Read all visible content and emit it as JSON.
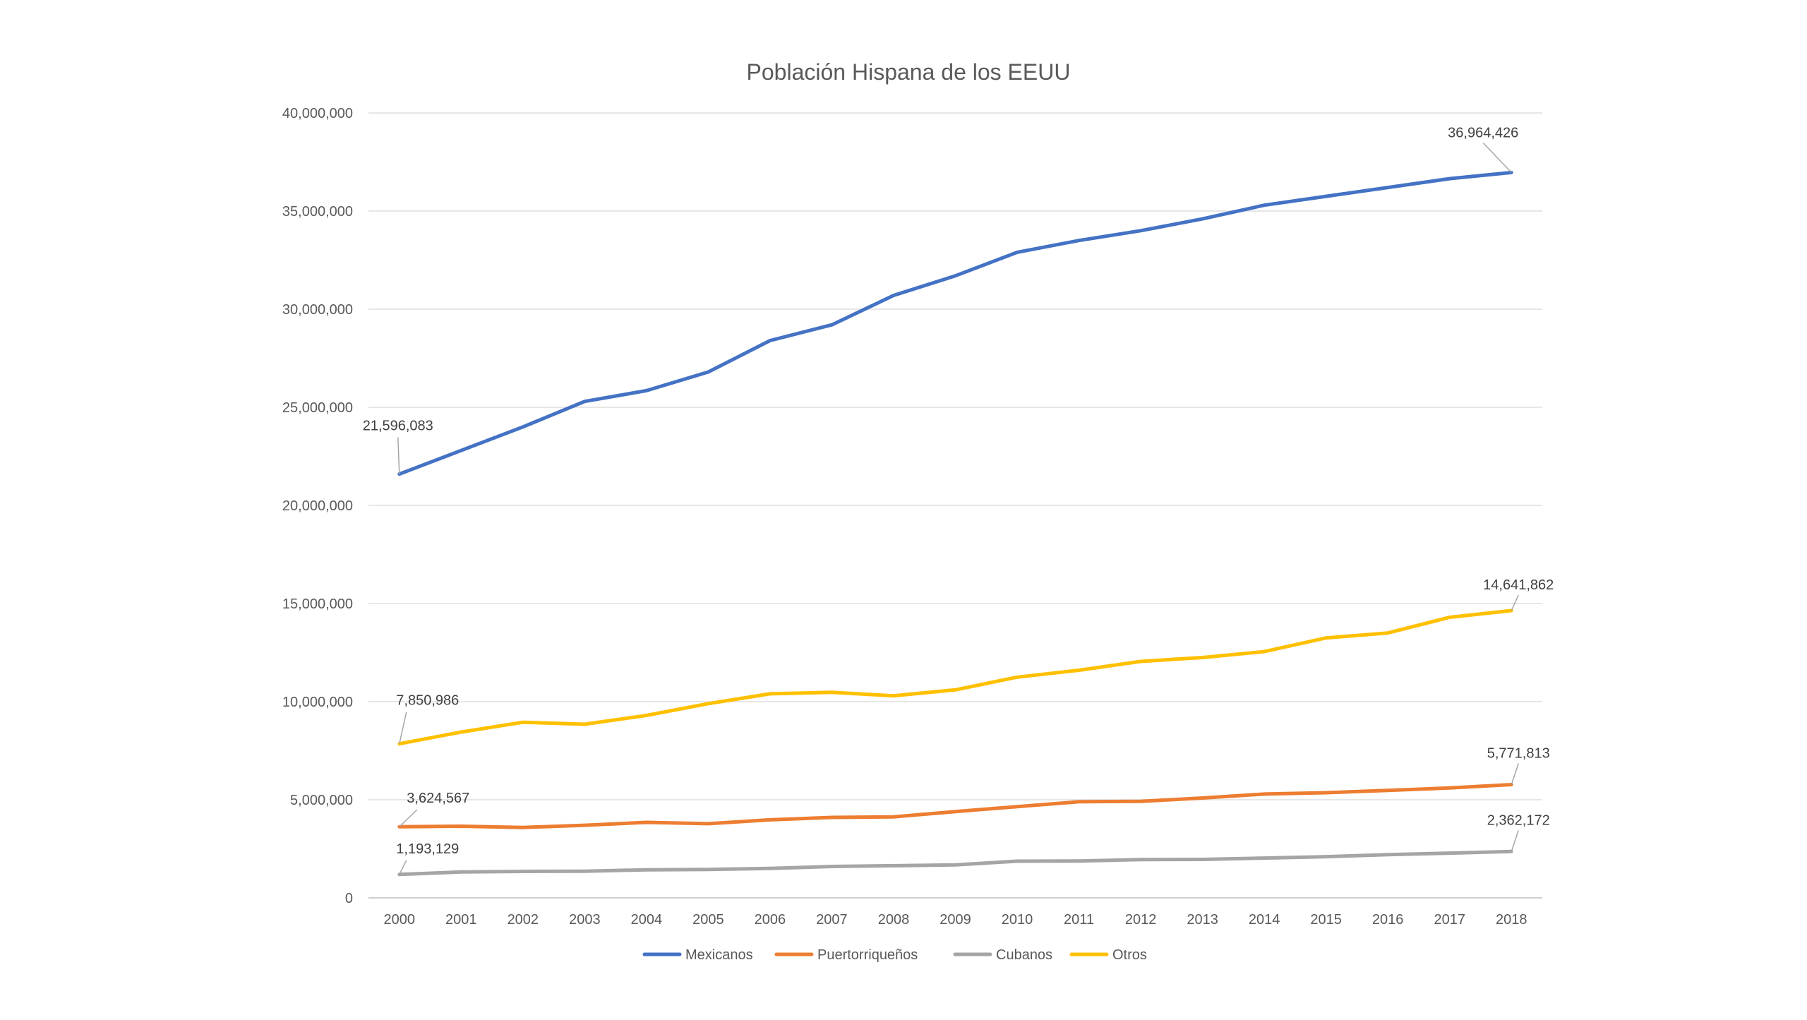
{
  "chart_data": {
    "type": "line",
    "title": "Población Hispana de los EEUU",
    "xlabel": "",
    "ylabel": "",
    "x": [
      "2000",
      "2001",
      "2002",
      "2003",
      "2004",
      "2005",
      "2006",
      "2007",
      "2008",
      "2009",
      "2010",
      "2011",
      "2012",
      "2013",
      "2014",
      "2015",
      "2016",
      "2017",
      "2018"
    ],
    "ylim": [
      0,
      40000000
    ],
    "y_ticks": [
      0,
      5000000,
      10000000,
      15000000,
      20000000,
      25000000,
      30000000,
      35000000,
      40000000
    ],
    "y_tick_labels": [
      "0",
      "5,000,000",
      "10,000,000",
      "15,000,000",
      "20,000,000",
      "25,000,000",
      "30,000,000",
      "35,000,000",
      "40,000,000"
    ],
    "grid": true,
    "legend": "bottom",
    "series": [
      {
        "name": "Mexicanos",
        "color": "#4472C4",
        "values": [
          21596083,
          22800000,
          24000000,
          25300000,
          25850000,
          26800000,
          28400000,
          29200000,
          30700000,
          31700000,
          32900000,
          33500000,
          34000000,
          34600000,
          35300000,
          35750000,
          36200000,
          36650000,
          36964426
        ],
        "start_label": "21,596,083",
        "end_label": "36,964,426"
      },
      {
        "name": "Puertorriqueños",
        "color": "#ED7D31",
        "values": [
          3624567,
          3650000,
          3590000,
          3700000,
          3850000,
          3780000,
          3980000,
          4100000,
          4130000,
          4400000,
          4650000,
          4900000,
          4920000,
          5090000,
          5290000,
          5360000,
          5480000,
          5600000,
          5771813
        ],
        "start_label": "3,624,567",
        "end_label": "5,771,813"
      },
      {
        "name": "Cubanos",
        "color": "#A5A5A5",
        "values": [
          1193129,
          1320000,
          1350000,
          1360000,
          1430000,
          1450000,
          1500000,
          1600000,
          1640000,
          1680000,
          1870000,
          1880000,
          1950000,
          1960000,
          2030000,
          2100000,
          2200000,
          2280000,
          2362172
        ],
        "start_label": "1,193,129",
        "end_label": "2,362,172"
      },
      {
        "name": "Otros",
        "color": "#FFC000",
        "values": [
          7850986,
          8450000,
          8950000,
          8850000,
          9300000,
          9900000,
          10400000,
          10480000,
          10300000,
          10600000,
          11250000,
          11600000,
          12050000,
          12250000,
          12550000,
          13250000,
          13500000,
          14300000,
          14641862
        ],
        "start_label": "7,850,986",
        "end_label": "14,641,862"
      }
    ]
  }
}
